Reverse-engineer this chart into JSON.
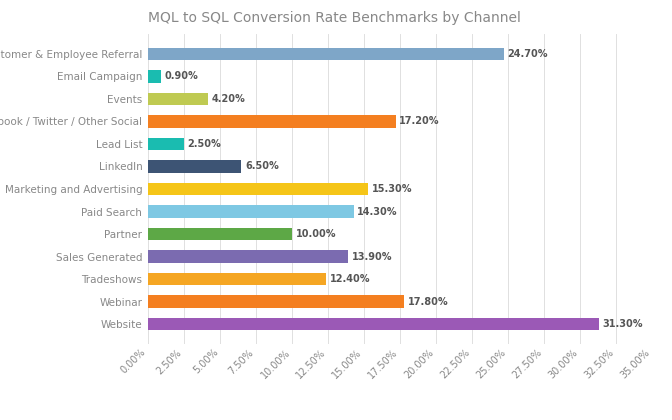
{
  "title": "MQL to SQL Conversion Rate Benchmarks by Channel",
  "categories": [
    "Customer & Employee Referral",
    "Email Campaign",
    "Events",
    "Facebook / Twitter / Other Social",
    "Lead List",
    "LinkedIn",
    "Marketing and Advertising",
    "Paid Search",
    "Partner",
    "Sales Generated",
    "Tradeshows",
    "Webinar",
    "Website"
  ],
  "values": [
    24.7,
    0.9,
    4.2,
    17.2,
    2.5,
    6.5,
    15.3,
    14.3,
    10.0,
    13.9,
    12.4,
    17.8,
    31.3
  ],
  "colors": [
    "#7EA6C8",
    "#1ABCB0",
    "#BFCA52",
    "#F47F20",
    "#1ABCB0",
    "#3D5474",
    "#F5C518",
    "#7EC8E3",
    "#5DA846",
    "#7B6BB0",
    "#F5A623",
    "#F47F20",
    "#9B59B6"
  ],
  "xlim": [
    0,
    35
  ],
  "xtick_values": [
    0,
    2.5,
    5.0,
    7.5,
    10.0,
    12.5,
    15.0,
    17.5,
    20.0,
    22.5,
    25.0,
    27.5,
    30.0,
    32.5,
    35.0
  ],
  "bar_height": 0.55,
  "background_color": "#FFFFFF",
  "grid_color": "#E0E0E0",
  "label_color": "#888888",
  "title_color": "#888888",
  "title_fontsize": 10,
  "axis_fontsize": 7,
  "label_fontsize": 7.5,
  "value_fontsize": 7,
  "value_color": "#555555"
}
